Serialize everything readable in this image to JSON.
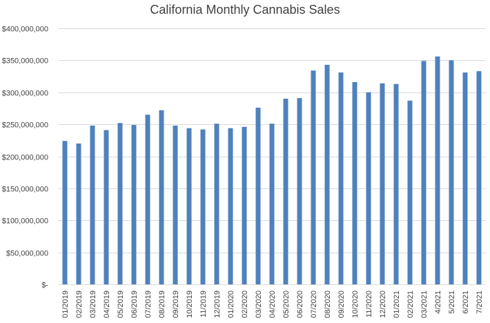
{
  "chart_data": {
    "type": "bar",
    "title": "California Monthly Cannabis Sales",
    "xlabel": "",
    "ylabel": "",
    "ylim": [
      0,
      400000000
    ],
    "grid": true,
    "bar_color": "#4F81BD",
    "grid_color": "#D9D9D9",
    "y_ticks": [
      0,
      50000000,
      100000000,
      150000000,
      200000000,
      250000000,
      300000000,
      350000000,
      400000000
    ],
    "y_tick_labels": [
      "$-",
      "$50,000,000",
      "$100,000,000",
      "$150,000,000",
      "$200,000,000",
      "$250,000,000",
      "$300,000,000",
      "$350,000,000",
      "$400,000,000"
    ],
    "categories": [
      "01/2019",
      "02/2019",
      "03/2019",
      "04/2019",
      "05/2019",
      "06/2019",
      "07/2019",
      "08/2019",
      "09/2019",
      "10/2019",
      "11/2019",
      "12/2019",
      "01/2020",
      "02/2020",
      "03/2020",
      "04/2020",
      "05/2020",
      "06/2020",
      "07/2020",
      "08/2020",
      "09/2020",
      "10/2020",
      "11/2020",
      "12/2020",
      "01/2021",
      "02/2021",
      "03/2021",
      "4/2021",
      "5/2021",
      "6/2021",
      "7/2021"
    ],
    "values": [
      224000000,
      220000000,
      248000000,
      241000000,
      252000000,
      249000000,
      265000000,
      272000000,
      248000000,
      244000000,
      242000000,
      251000000,
      244000000,
      246000000,
      276000000,
      251000000,
      290000000,
      291000000,
      334000000,
      343000000,
      331000000,
      316000000,
      300000000,
      314000000,
      313000000,
      287000000,
      349000000,
      356000000,
      350000000,
      331000000,
      333000000
    ]
  }
}
